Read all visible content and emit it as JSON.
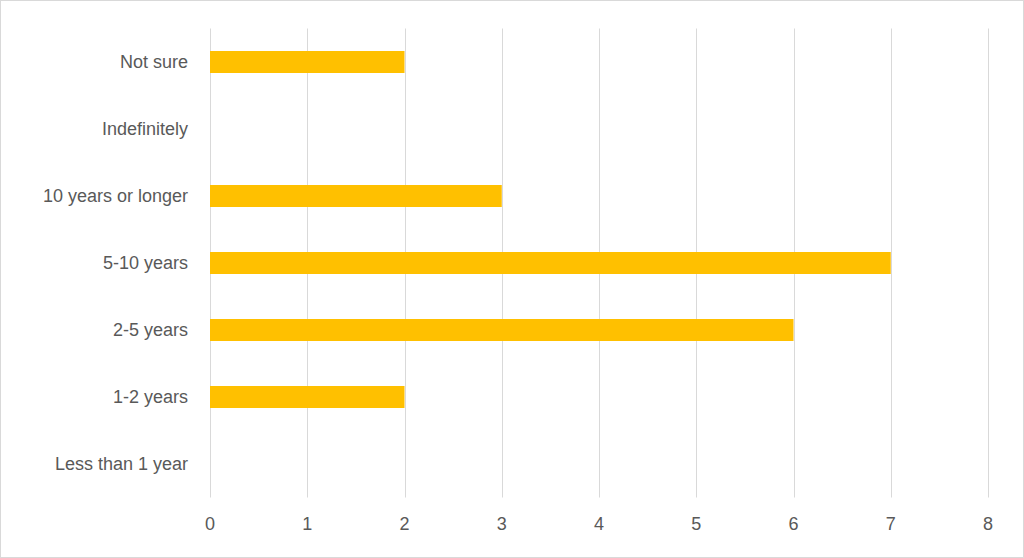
{
  "chart_data": {
    "type": "bar",
    "orientation": "horizontal",
    "categories": [
      "Not sure",
      "Indefinitely",
      "10 years or longer",
      "5-10 years",
      "2-5 years",
      "1-2 years",
      "Less than 1 year"
    ],
    "values": [
      2,
      0,
      3,
      7,
      6,
      2,
      0
    ],
    "color": "#ffc000",
    "xlim": [
      0,
      8
    ],
    "xticks": [
      0,
      1,
      2,
      3,
      4,
      5,
      6,
      7,
      8
    ],
    "grid": true
  }
}
